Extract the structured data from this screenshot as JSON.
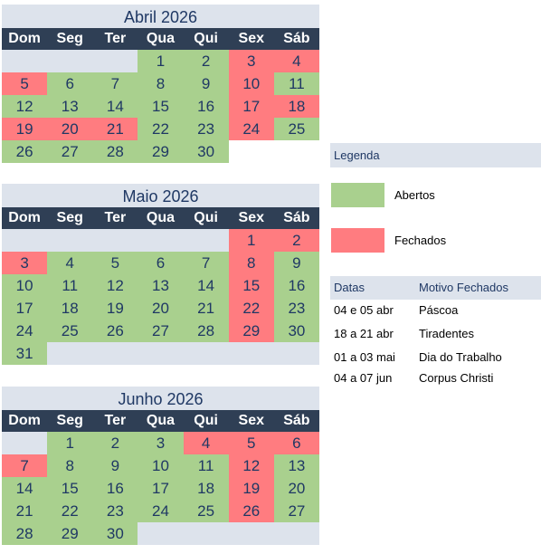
{
  "weekdays": [
    "Dom",
    "Seg",
    "Ter",
    "Qua",
    "Qui",
    "Sex",
    "Sáb"
  ],
  "colors": {
    "aberto": "#a9d08e",
    "fechado": "#ff7c80",
    "header_bg": "#2f3f55",
    "title_bg": "#dde3ec"
  },
  "months": [
    {
      "title": "Abril 2026",
      "cells": [
        [
          "",
          ""
        ],
        [
          "",
          ""
        ],
        [
          "",
          ""
        ],
        [
          "1",
          "o"
        ],
        [
          "2",
          "o"
        ],
        [
          "3",
          "c"
        ],
        [
          "4",
          "c"
        ],
        [
          "5",
          "c"
        ],
        [
          "6",
          "o"
        ],
        [
          "7",
          "o"
        ],
        [
          "8",
          "o"
        ],
        [
          "9",
          "o"
        ],
        [
          "10",
          "c"
        ],
        [
          "11",
          "o"
        ],
        [
          "12",
          "o"
        ],
        [
          "13",
          "o"
        ],
        [
          "14",
          "o"
        ],
        [
          "15",
          "o"
        ],
        [
          "16",
          "o"
        ],
        [
          "17",
          "c"
        ],
        [
          "18",
          "c"
        ],
        [
          "19",
          "c"
        ],
        [
          "20",
          "c"
        ],
        [
          "21",
          "c"
        ],
        [
          "22",
          "o"
        ],
        [
          "23",
          "o"
        ],
        [
          "24",
          "c"
        ],
        [
          "25",
          "o"
        ],
        [
          "26",
          "o"
        ],
        [
          "27",
          "o"
        ],
        [
          "28",
          "o"
        ],
        [
          "29",
          "o"
        ],
        [
          "30",
          "o"
        ],
        [
          "",
          "w"
        ],
        [
          "",
          "w"
        ]
      ]
    },
    {
      "title": "Maio 2026",
      "cells": [
        [
          "",
          ""
        ],
        [
          "",
          ""
        ],
        [
          "",
          ""
        ],
        [
          "",
          ""
        ],
        [
          "",
          ""
        ],
        [
          "1",
          "c"
        ],
        [
          "2",
          "c"
        ],
        [
          "3",
          "c"
        ],
        [
          "4",
          "o"
        ],
        [
          "5",
          "o"
        ],
        [
          "6",
          "o"
        ],
        [
          "7",
          "o"
        ],
        [
          "8",
          "c"
        ],
        [
          "9",
          "o"
        ],
        [
          "10",
          "o"
        ],
        [
          "11",
          "o"
        ],
        [
          "12",
          "o"
        ],
        [
          "13",
          "o"
        ],
        [
          "14",
          "o"
        ],
        [
          "15",
          "c"
        ],
        [
          "16",
          "o"
        ],
        [
          "17",
          "o"
        ],
        [
          "18",
          "o"
        ],
        [
          "19",
          "o"
        ],
        [
          "20",
          "o"
        ],
        [
          "21",
          "o"
        ],
        [
          "22",
          "c"
        ],
        [
          "23",
          "o"
        ],
        [
          "24",
          "o"
        ],
        [
          "25",
          "o"
        ],
        [
          "26",
          "o"
        ],
        [
          "27",
          "o"
        ],
        [
          "28",
          "o"
        ],
        [
          "29",
          "c"
        ],
        [
          "30",
          "o"
        ],
        [
          "31",
          "o"
        ],
        [
          "",
          ""
        ],
        [
          "",
          ""
        ],
        [
          "",
          ""
        ],
        [
          "",
          ""
        ],
        [
          "",
          ""
        ],
        [
          "",
          ""
        ]
      ]
    },
    {
      "title": "Junho 2026",
      "cells": [
        [
          "",
          ""
        ],
        [
          "1",
          "o"
        ],
        [
          "2",
          "o"
        ],
        [
          "3",
          "o"
        ],
        [
          "4",
          "c"
        ],
        [
          "5",
          "c"
        ],
        [
          "6",
          "c"
        ],
        [
          "7",
          "c"
        ],
        [
          "8",
          "o"
        ],
        [
          "9",
          "o"
        ],
        [
          "10",
          "o"
        ],
        [
          "11",
          "o"
        ],
        [
          "12",
          "c"
        ],
        [
          "13",
          "o"
        ],
        [
          "14",
          "o"
        ],
        [
          "15",
          "o"
        ],
        [
          "16",
          "o"
        ],
        [
          "17",
          "o"
        ],
        [
          "18",
          "o"
        ],
        [
          "19",
          "c"
        ],
        [
          "20",
          "o"
        ],
        [
          "21",
          "o"
        ],
        [
          "22",
          "o"
        ],
        [
          "23",
          "o"
        ],
        [
          "24",
          "o"
        ],
        [
          "25",
          "o"
        ],
        [
          "26",
          "c"
        ],
        [
          "27",
          "o"
        ],
        [
          "28",
          "o"
        ],
        [
          "29",
          "o"
        ],
        [
          "30",
          "o"
        ],
        [
          "",
          ""
        ],
        [
          "",
          ""
        ],
        [
          "",
          ""
        ],
        [
          "",
          ""
        ]
      ]
    }
  ],
  "legend": {
    "title": "Legenda",
    "open": "Abertos",
    "closed": "Fechados"
  },
  "dates_table": {
    "col_dates": "Datas",
    "col_reason": "Motivo Fechados",
    "rows": [
      [
        "04 e 05 abr",
        "Páscoa"
      ],
      [
        "18 a 21 abr",
        "Tiradentes"
      ],
      [
        "01 a 03 mai",
        "Dia do Trabalho"
      ],
      [
        "04 a 07 jun",
        "Corpus Christi"
      ]
    ]
  }
}
